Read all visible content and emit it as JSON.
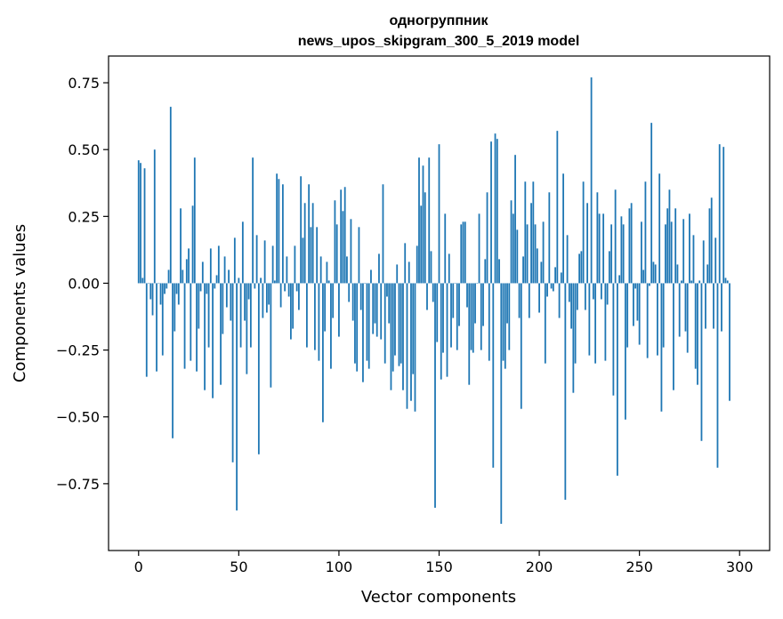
{
  "chart_data": {
    "type": "bar",
    "title_lines": [
      "одногруппник",
      "news_upos_skipgram_300_5_2019 model"
    ],
    "xlabel": "Vector components",
    "ylabel": "Components values",
    "xlim": [
      -15,
      315
    ],
    "ylim": [
      -1.0,
      0.85
    ],
    "xticks": [
      0,
      50,
      100,
      150,
      200,
      250,
      300
    ],
    "xtick_labels": [
      "0",
      "50",
      "100",
      "150",
      "200",
      "250",
      "300"
    ],
    "yticks": [
      0.75,
      0.5,
      0.25,
      0.0,
      -0.25,
      -0.5,
      -0.75
    ],
    "ytick_labels": [
      "0.75",
      "0.50",
      "0.25",
      "0.00",
      "−0.25",
      "−0.50",
      "−0.75"
    ],
    "grid": false,
    "series": [
      {
        "name": "components",
        "color": "#1f77b4",
        "values": [
          0.46,
          0.45,
          0.02,
          0.43,
          -0.35,
          0.0,
          -0.06,
          -0.12,
          0.5,
          -0.33,
          0.0,
          -0.08,
          -0.27,
          -0.04,
          -0.02,
          0.05,
          0.66,
          -0.58,
          -0.18,
          -0.04,
          -0.08,
          0.28,
          0.05,
          -0.32,
          0.09,
          0.13,
          -0.29,
          0.29,
          0.47,
          -0.33,
          -0.17,
          -0.03,
          0.08,
          -0.4,
          -0.04,
          -0.24,
          0.13,
          -0.43,
          -0.02,
          0.03,
          0.14,
          -0.38,
          -0.19,
          0.1,
          -0.09,
          0.05,
          -0.14,
          -0.67,
          0.17,
          -0.85,
          0.02,
          -0.24,
          0.23,
          -0.14,
          -0.34,
          -0.06,
          -0.24,
          0.47,
          -0.02,
          0.18,
          -0.64,
          0.02,
          -0.13,
          0.16,
          -0.11,
          -0.08,
          -0.39,
          0.14,
          0.01,
          0.41,
          0.39,
          -0.09,
          0.37,
          -0.03,
          0.1,
          -0.05,
          -0.21,
          -0.17,
          0.14,
          -0.03,
          -0.1,
          0.4,
          0.17,
          0.3,
          -0.24,
          0.37,
          0.21,
          0.3,
          -0.25,
          0.21,
          -0.29,
          0.1,
          -0.52,
          -0.18,
          0.08,
          0.01,
          -0.32,
          -0.13,
          0.31,
          0.22,
          -0.2,
          0.35,
          0.27,
          0.36,
          0.1,
          -0.07,
          0.24,
          -0.14,
          -0.3,
          -0.33,
          0.21,
          -0.1,
          -0.37,
          0.0,
          -0.29,
          -0.32,
          0.05,
          -0.19,
          -0.15,
          -0.2,
          0.11,
          -0.21,
          0.37,
          -0.3,
          -0.05,
          -0.15,
          -0.4,
          -0.33,
          -0.27,
          0.07,
          -0.31,
          -0.3,
          -0.4,
          0.15,
          -0.47,
          0.08,
          -0.44,
          -0.34,
          -0.48,
          0.14,
          0.47,
          0.29,
          0.44,
          0.34,
          -0.1,
          0.47,
          0.12,
          -0.07,
          -0.84,
          -0.22,
          0.52,
          -0.36,
          -0.26,
          0.26,
          -0.35,
          0.11,
          -0.24,
          -0.13,
          0.0,
          -0.25,
          -0.16,
          0.22,
          0.23,
          0.23,
          -0.09,
          -0.38,
          -0.25,
          -0.26,
          -0.15,
          0.0,
          0.26,
          -0.25,
          -0.16,
          0.09,
          0.34,
          -0.29,
          0.53,
          -0.69,
          0.56,
          0.54,
          0.09,
          -0.9,
          -0.29,
          -0.32,
          -0.15,
          -0.25,
          0.31,
          0.26,
          0.48,
          0.2,
          -0.13,
          -0.47,
          0.1,
          0.38,
          0.22,
          -0.13,
          0.3,
          0.38,
          0.22,
          0.13,
          -0.11,
          0.08,
          0.23,
          -0.3,
          -0.05,
          0.34,
          -0.02,
          -0.03,
          0.06,
          0.57,
          -0.13,
          0.04,
          0.41,
          -0.81,
          0.18,
          -0.07,
          -0.17,
          -0.41,
          -0.3,
          -0.1,
          0.11,
          0.12,
          0.38,
          -0.1,
          0.3,
          -0.27,
          0.77,
          -0.06,
          -0.3,
          0.34,
          0.26,
          -0.06,
          0.26,
          -0.29,
          -0.08,
          0.12,
          0.22,
          -0.42,
          0.35,
          -0.72,
          0.03,
          0.25,
          0.22,
          -0.51,
          -0.24,
          0.28,
          0.3,
          -0.16,
          -0.02,
          -0.14,
          -0.23,
          0.23,
          0.05,
          0.38,
          -0.28,
          -0.01,
          0.6,
          0.08,
          0.07,
          -0.27,
          0.41,
          -0.48,
          -0.24,
          0.22,
          0.28,
          0.35,
          0.23,
          -0.4,
          0.28,
          0.07,
          -0.2,
          0.01,
          0.24,
          -0.18,
          -0.26,
          0.26,
          0.01,
          0.18,
          -0.32,
          -0.38,
          0.01,
          -0.59,
          0.16,
          -0.17,
          0.07,
          0.28,
          0.32,
          -0.17,
          0.17,
          -0.69,
          0.52,
          -0.18,
          0.51,
          0.02,
          0.01,
          -0.44
        ]
      }
    ]
  }
}
